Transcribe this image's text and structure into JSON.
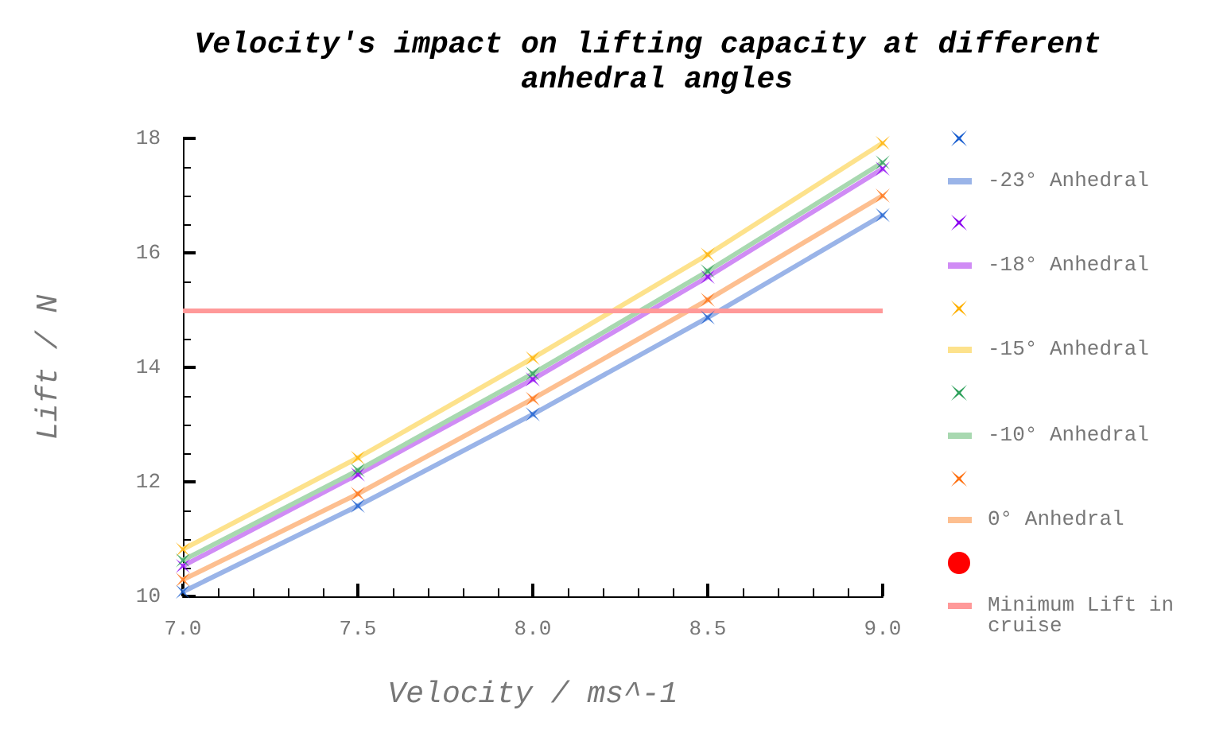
{
  "chart_data": {
    "type": "scatter",
    "title": "Velocity's impact on lifting capacity at different anhedral angles",
    "xlabel": "Velocity / ms^-1",
    "ylabel": "Lift / N",
    "x": [
      7,
      7.5,
      8,
      8.5,
      9
    ],
    "xlim": [
      7,
      9
    ],
    "xticks": [
      {
        "value": 7,
        "label": "7.0"
      },
      {
        "value": 7.5,
        "label": "7.5"
      },
      {
        "value": 8,
        "label": "8.0"
      },
      {
        "value": 8.5,
        "label": "8.5"
      },
      {
        "value": 9,
        "label": "9.0"
      }
    ],
    "ylim": [
      10,
      18
    ],
    "yticks": [
      10,
      12,
      14,
      16,
      18
    ],
    "grid": false,
    "legend": "right",
    "series": [
      {
        "type": "scatter",
        "marker": "cross",
        "color": "#1a5fd0",
        "values": [
          10.08,
          11.58,
          13.18,
          14.87,
          16.66
        ]
      },
      {
        "type": "line",
        "marker": "none",
        "name": "-23° Anhedral",
        "color": "#9ab4e8",
        "values": [
          10.08,
          11.58,
          13.18,
          14.87,
          16.66
        ]
      },
      {
        "type": "scatter",
        "marker": "cross",
        "color": "#8a00f0",
        "values": [
          10.53,
          12.13,
          13.79,
          15.58,
          17.47
        ]
      },
      {
        "type": "line",
        "marker": "none",
        "name": "-18° Anhedral",
        "color": "#d08cf5",
        "values": [
          10.53,
          12.13,
          13.79,
          15.58,
          17.47
        ]
      },
      {
        "type": "scatter",
        "marker": "cross",
        "color": "#ffb000",
        "values": [
          10.82,
          12.42,
          14.16,
          15.97,
          17.92
        ]
      },
      {
        "type": "line",
        "marker": "none",
        "name": "-15° Anhedral",
        "color": "#fde28c",
        "values": [
          10.82,
          12.42,
          14.16,
          15.97,
          17.92
        ]
      },
      {
        "type": "scatter",
        "marker": "cross",
        "color": "#2ca05a",
        "values": [
          10.63,
          12.2,
          13.89,
          15.68,
          17.58
        ]
      },
      {
        "type": "line",
        "marker": "none",
        "name": "-10° Anhedral",
        "color": "#a8d8b0",
        "values": [
          10.63,
          12.2,
          13.89,
          15.68,
          17.58
        ]
      },
      {
        "type": "scatter",
        "marker": "cross",
        "color": "#ff7010",
        "values": [
          10.29,
          11.79,
          13.45,
          15.18,
          17.0
        ]
      },
      {
        "type": "line",
        "marker": "none",
        "name": "0° Anhedral",
        "color": "#fdbf90",
        "values": [
          10.29,
          11.79,
          13.45,
          15.18,
          17.0
        ]
      },
      {
        "type": "scatter",
        "marker": "circle",
        "color": "#ff0000",
        "values": [
          null,
          null,
          null,
          null,
          null
        ]
      }
    ],
    "ref_lines": [
      {
        "axis": "y",
        "value": 15,
        "label": "Minimum Lift in cruise",
        "color": "#ff9999",
        "line_style": "solid"
      }
    ]
  }
}
